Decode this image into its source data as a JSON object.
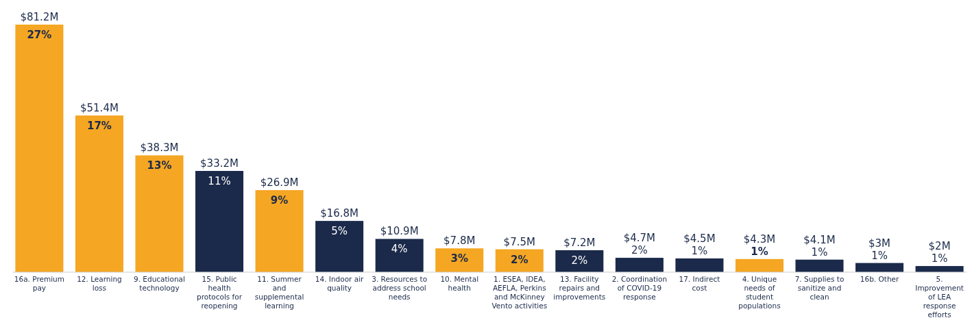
{
  "chart_data": {
    "type": "bar",
    "categories": [
      "16a. Premium pay",
      "12. Learning loss",
      "9. Educational technology",
      "15. Public health protocols for reopening",
      "11. Summer and supplemental learning",
      "14. Indoor air quality",
      "3. Resources to address school needs",
      "10. Mental health",
      "1. ESEA, IDEA, AEFLA, Perkins and McKinney Vento activities",
      "13. Facility repairs and improvements",
      "2. Coordination of COVID-19 response",
      "17. Indirect cost",
      "4. Unique needs of student populations",
      "7. Supplies to sanitize and clean",
      "16b. Other",
      "5. Improvement of LEA response efforts"
    ],
    "values": [
      81.2,
      51.4,
      38.3,
      33.2,
      26.9,
      16.8,
      10.9,
      7.8,
      7.5,
      7.2,
      4.7,
      4.5,
      4.3,
      4.1,
      3,
      2
    ],
    "colors": [
      "#f5a623",
      "#f5a623",
      "#f5a623",
      "#1b2a4a",
      "#f5a623",
      "#1b2a4a",
      "#1b2a4a",
      "#f5a623",
      "#f5a623",
      "#1b2a4a",
      "#1b2a4a",
      "#1b2a4a",
      "#f5a623",
      "#1b2a4a",
      "#1b2a4a",
      "#1b2a4a"
    ],
    "value_labels": [
      "$81.2M",
      "$51.4M",
      "$38.3M",
      "$33.2M",
      "$26.9M",
      "$16.8M",
      "$10.9M",
      "$7.8M",
      "$7.5M",
      "$7.2M",
      "$4.7M",
      "$4.5M",
      "$4.3M",
      "$4.1M",
      "$3M",
      "$2M"
    ],
    "annotations": [
      {
        "text": "27%",
        "x": "16a. Premium pay",
        "y": 81.2
      },
      {
        "text": "17%",
        "x": "12. Learning loss",
        "y": 51.4
      },
      {
        "text": "13%",
        "x": "9. Educational technology",
        "y": 38.3
      },
      {
        "text": "11%",
        "x": "15. Public health protocols for reopening",
        "y": 33.2
      },
      {
        "text": "9%",
        "x": "11. Summer and supplemental learning",
        "y": 26.9
      },
      {
        "text": "5%",
        "x": "14. Indoor air quality",
        "y": 16.8
      },
      {
        "text": "4%",
        "x": "3. Resources to address school needs",
        "y": 10.9
      },
      {
        "text": "3%",
        "x": "10. Mental health",
        "y": 7.8
      },
      {
        "text": "2%",
        "x": "1. ESEA, IDEA, AEFLA, Perkins and McKinney Vento activities",
        "y": 7.5
      },
      {
        "text": "2%",
        "x": "13. Facility repairs and improvements",
        "y": 7.2
      },
      {
        "text": "2%",
        "x": "2. Coordination of COVID-19 response",
        "y": 4.7
      },
      {
        "text": "1%",
        "x": "17. Indirect cost",
        "y": 4.5
      },
      {
        "text": "1%",
        "x": "4. Unique needs of student populations",
        "y": 4.3
      },
      {
        "text": "1%",
        "x": "7. Supplies to sanitize and clean",
        "y": 4.1
      },
      {
        "text": "1%",
        "x": "16b. Other",
        "y": 3
      },
      {
        "text": "1%",
        "x": "5. Improvement of LEA response efforts",
        "y": 2
      }
    ]
  }
}
